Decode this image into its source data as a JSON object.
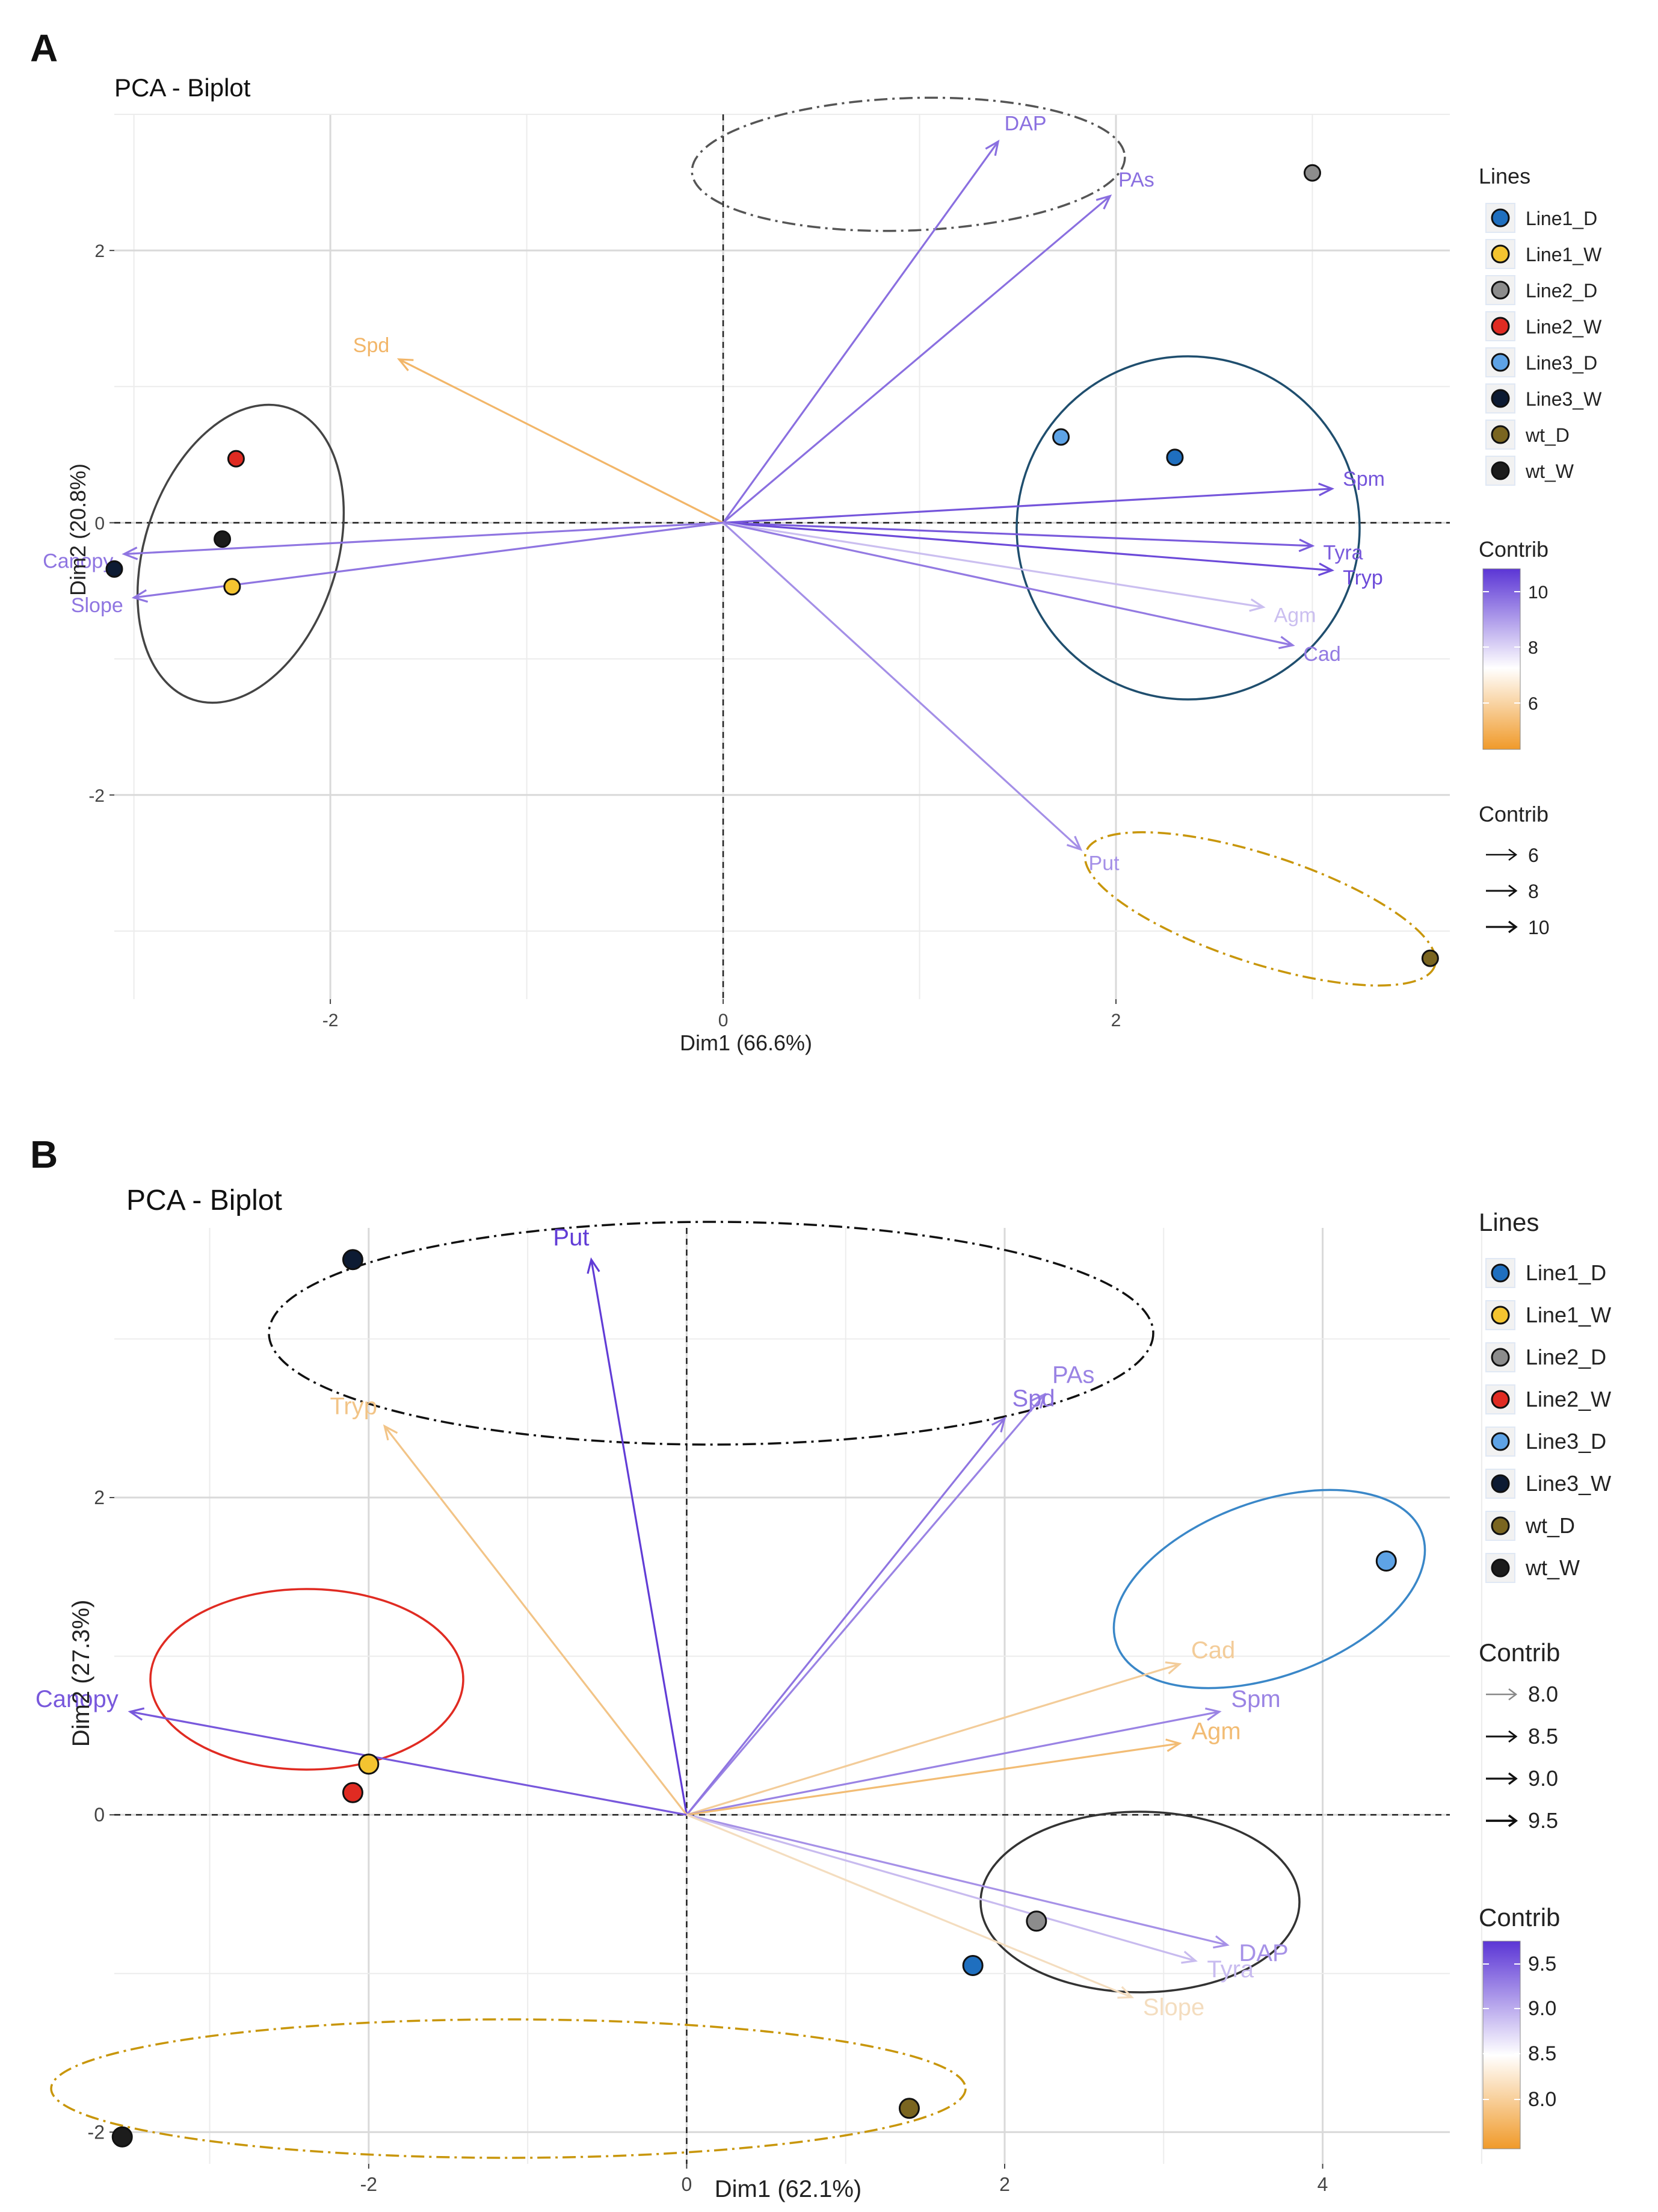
{
  "figure": {
    "panel_labels": [
      "A",
      "B"
    ]
  },
  "chart_data": [
    {
      "type": "scatter",
      "subtype": "pca-biplot",
      "panel": "A",
      "title": "PCA - Biplot",
      "xlabel": "Dim1 (66.6%)",
      "ylabel": "Dim2 (20.8%)",
      "xlim": [
        -3.1,
        3.7
      ],
      "ylim": [
        -3.5,
        3.0
      ],
      "xticks": [
        -2,
        0,
        2
      ],
      "yticks": [
        -2,
        0,
        2
      ],
      "grid": true,
      "points": [
        {
          "group": "Line1_D",
          "x": 2.3,
          "y": 0.48
        },
        {
          "group": "Line1_W",
          "x": -2.5,
          "y": -0.47
        },
        {
          "group": "Line2_D",
          "x": 3.0,
          "y": 2.57
        },
        {
          "group": "Line2_W",
          "x": -2.48,
          "y": 0.47
        },
        {
          "group": "Line3_D",
          "x": 1.72,
          "y": 0.63
        },
        {
          "group": "Line3_W",
          "x": -3.1,
          "y": -0.34
        },
        {
          "group": "wt_D",
          "x": 3.6,
          "y": -3.2
        },
        {
          "group": "wt_W",
          "x": -2.55,
          "y": -0.12
        }
      ],
      "vectors": [
        {
          "name": "DAP",
          "x": 1.4,
          "y": 2.8,
          "contrib": 9.3
        },
        {
          "name": "PAs",
          "x": 1.97,
          "y": 2.4,
          "contrib": 9.3
        },
        {
          "name": "Spd",
          "x": -1.65,
          "y": 1.2,
          "contrib": 5.3
        },
        {
          "name": "Canopy",
          "x": -3.05,
          "y": -0.23,
          "contrib": 9.2
        },
        {
          "name": "Slope",
          "x": -3.0,
          "y": -0.55,
          "contrib": 9.2
        },
        {
          "name": "Spm",
          "x": 3.1,
          "y": 0.25,
          "contrib": 9.8
        },
        {
          "name": "Tyra",
          "x": 3.0,
          "y": -0.17,
          "contrib": 9.7
        },
        {
          "name": "Tryp",
          "x": 3.1,
          "y": -0.35,
          "contrib": 10.0
        },
        {
          "name": "Agm",
          "x": 2.75,
          "y": -0.62,
          "contrib": 7.8
        },
        {
          "name": "Cad",
          "x": 2.9,
          "y": -0.9,
          "contrib": 9.1
        },
        {
          "name": "Put",
          "x": 1.82,
          "y": -2.4,
          "contrib": 8.7
        }
      ],
      "ellipses": [
        {
          "groups": [
            "Line2_D"
          ],
          "color": "#555555",
          "style": "dot-dash"
        },
        {
          "groups": [
            "Line1_D",
            "Line3_D"
          ],
          "color": "#1f4e6e",
          "style": "solid"
        },
        {
          "groups": [
            "Line1_W",
            "Line2_W",
            "Line3_W",
            "wt_W"
          ],
          "color": "#444444",
          "style": "solid"
        },
        {
          "groups": [
            "wt_D"
          ],
          "color": "#c8960a",
          "style": "dot-dash"
        }
      ],
      "legend_lines": {
        "title": "Lines",
        "items": [
          {
            "label": "Line1_D",
            "color": "#1f6fbf"
          },
          {
            "label": "Line1_W",
            "color": "#f4c430"
          },
          {
            "label": "Line2_D",
            "color": "#8c8c8c"
          },
          {
            "label": "Line2_W",
            "color": "#e02b22"
          },
          {
            "label": "Line3_D",
            "color": "#5ea3e6"
          },
          {
            "label": "Line3_W",
            "color": "#0d1b33"
          },
          {
            "label": "wt_D",
            "color": "#7a6520"
          },
          {
            "label": "wt_W",
            "color": "#1c1c1c"
          }
        ]
      },
      "legend_color": {
        "title": "Contrib",
        "ticks": [
          "10",
          "8",
          "6"
        ],
        "range": [
          4.4,
          10.4
        ]
      },
      "legend_size": {
        "title": "Contrib",
        "items": [
          "6",
          "8",
          "10"
        ]
      }
    },
    {
      "type": "scatter",
      "subtype": "pca-biplot",
      "panel": "B",
      "title": "PCA - Biplot",
      "xlabel": "Dim1 (62.1%)",
      "ylabel": "Dim2 (27.3%)",
      "xlim": [
        -3.6,
        4.8
      ],
      "ylim": [
        -2.2,
        3.7
      ],
      "xticks": [
        -2,
        0,
        2,
        4
      ],
      "yticks": [
        -2,
        0,
        2
      ],
      "grid": true,
      "points": [
        {
          "group": "Line1_D",
          "x": 1.8,
          "y": -0.95
        },
        {
          "group": "Line1_W",
          "x": -2.0,
          "y": 0.32
        },
        {
          "group": "Line2_D",
          "x": 2.2,
          "y": -0.67
        },
        {
          "group": "Line2_W",
          "x": -2.1,
          "y": 0.14
        },
        {
          "group": "Line3_D",
          "x": 4.4,
          "y": 1.6
        },
        {
          "group": "Line3_W",
          "x": -2.1,
          "y": 3.5
        },
        {
          "group": "wt_D",
          "x": 1.4,
          "y": -1.85
        },
        {
          "group": "wt_W",
          "x": -3.55,
          "y": -2.03
        }
      ],
      "vectors": [
        {
          "name": "Put",
          "x": -0.6,
          "y": 3.5,
          "contrib": 9.9
        },
        {
          "name": "PAs",
          "x": 2.25,
          "y": 2.65,
          "contrib": 9.4
        },
        {
          "name": "Spd",
          "x": 2.0,
          "y": 2.5,
          "contrib": 9.5
        },
        {
          "name": "Tryp",
          "x": -1.9,
          "y": 2.45,
          "contrib": 8.2
        },
        {
          "name": "Canopy",
          "x": -3.5,
          "y": 0.65,
          "contrib": 9.7
        },
        {
          "name": "Cad",
          "x": 3.1,
          "y": 0.95,
          "contrib": 8.3
        },
        {
          "name": "Spm",
          "x": 3.35,
          "y": 0.65,
          "contrib": 9.4
        },
        {
          "name": "Agm",
          "x": 3.1,
          "y": 0.45,
          "contrib": 8.1
        },
        {
          "name": "DAP",
          "x": 3.4,
          "y": -0.82,
          "contrib": 9.3
        },
        {
          "name": "Tyra",
          "x": 3.2,
          "y": -0.92,
          "contrib": 9.0
        },
        {
          "name": "Slope",
          "x": 2.8,
          "y": -1.15,
          "contrib": 8.5
        }
      ],
      "ellipses": [
        {
          "groups": [
            "Line3_W"
          ],
          "color": "#111111",
          "style": "dot-dash"
        },
        {
          "groups": [
            "Line1_W",
            "Line2_W"
          ],
          "color": "#e02b22",
          "style": "solid"
        },
        {
          "groups": [
            "Line3_D"
          ],
          "color": "#3a87c8",
          "style": "solid"
        },
        {
          "groups": [
            "Line1_D",
            "Line2_D"
          ],
          "color": "#333333",
          "style": "solid"
        },
        {
          "groups": [
            "wt_D",
            "wt_W"
          ],
          "color": "#c8960a",
          "style": "dot-dash"
        }
      ],
      "legend_lines": {
        "title": "Lines",
        "items": [
          {
            "label": "Line1_D",
            "color": "#1f6fbf"
          },
          {
            "label": "Line1_W",
            "color": "#f4c430"
          },
          {
            "label": "Line2_D",
            "color": "#8c8c8c"
          },
          {
            "label": "Line2_W",
            "color": "#e02b22"
          },
          {
            "label": "Line3_D",
            "color": "#5ea3e6"
          },
          {
            "label": "Line3_W",
            "color": "#0d1b33"
          },
          {
            "label": "wt_D",
            "color": "#7a6520"
          },
          {
            "label": "wt_W",
            "color": "#1c1c1c"
          }
        ]
      },
      "legend_size": {
        "title": "Contrib",
        "items": [
          "8.0",
          "8.5",
          "9.0",
          "9.5"
        ]
      },
      "legend_color": {
        "title": "Contrib",
        "ticks": [
          "9.5",
          "9.0",
          "8.5",
          "8.0"
        ],
        "range": [
          7.7,
          9.95
        ]
      }
    }
  ]
}
